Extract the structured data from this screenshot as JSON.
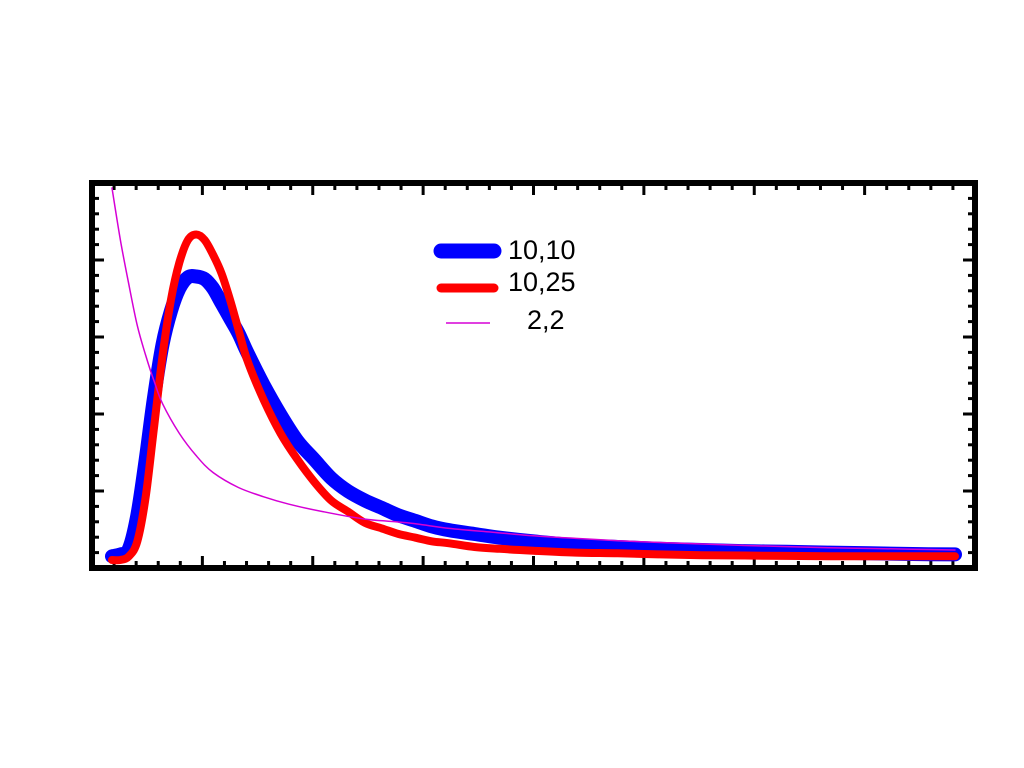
{
  "chart_data": {
    "type": "line",
    "title": "",
    "xlabel": "",
    "ylabel": "",
    "xlim": [
      0,
      1
    ],
    "ylim": [
      0,
      1
    ],
    "grid": false,
    "legend": {
      "placement": "top-center"
    },
    "frame_color": "#000000",
    "series": [
      {
        "name": "10,10",
        "color": "#0000ff",
        "x": [
          0.0,
          0.01,
          0.02,
          0.03,
          0.04,
          0.05,
          0.06,
          0.07,
          0.08,
          0.09,
          0.1,
          0.11,
          0.12,
          0.13,
          0.14,
          0.15,
          0.16,
          0.18,
          0.2,
          0.22,
          0.24,
          0.26,
          0.28,
          0.3,
          0.32,
          0.34,
          0.36,
          0.38,
          0.4,
          0.43,
          0.46,
          0.5,
          0.55,
          0.6,
          0.65,
          0.7,
          0.75,
          0.8,
          0.85,
          0.9,
          0.95,
          1.0
        ],
        "y": [
          0.01,
          0.015,
          0.03,
          0.12,
          0.27,
          0.44,
          0.58,
          0.67,
          0.73,
          0.76,
          0.762,
          0.755,
          0.73,
          0.69,
          0.65,
          0.61,
          0.56,
          0.47,
          0.39,
          0.32,
          0.27,
          0.22,
          0.185,
          0.16,
          0.14,
          0.12,
          0.105,
          0.09,
          0.08,
          0.07,
          0.06,
          0.05,
          0.04,
          0.035,
          0.03,
          0.027,
          0.024,
          0.022,
          0.02,
          0.018,
          0.016,
          0.015
        ]
      },
      {
        "name": "10,25",
        "color": "#ff0000",
        "x": [
          0.0,
          0.01,
          0.02,
          0.03,
          0.04,
          0.05,
          0.06,
          0.07,
          0.08,
          0.09,
          0.1,
          0.11,
          0.12,
          0.13,
          0.14,
          0.15,
          0.16,
          0.18,
          0.2,
          0.22,
          0.24,
          0.26,
          0.28,
          0.3,
          0.32,
          0.34,
          0.36,
          0.38,
          0.4,
          0.43,
          0.46,
          0.5,
          0.55,
          0.6,
          0.65,
          0.7,
          0.75,
          0.8,
          0.85,
          0.9,
          0.95,
          1.0
        ],
        "y": [
          0.0,
          0.0,
          0.01,
          0.05,
          0.17,
          0.36,
          0.55,
          0.7,
          0.8,
          0.86,
          0.875,
          0.86,
          0.82,
          0.77,
          0.7,
          0.62,
          0.54,
          0.43,
          0.34,
          0.27,
          0.21,
          0.16,
          0.13,
          0.1,
          0.085,
          0.07,
          0.06,
          0.05,
          0.045,
          0.035,
          0.03,
          0.025,
          0.02,
          0.018,
          0.015,
          0.013,
          0.012,
          0.011,
          0.01,
          0.01,
          0.01,
          0.01
        ]
      },
      {
        "name": "2,2",
        "color": "#d500d5",
        "x": [
          0.0,
          0.01,
          0.02,
          0.03,
          0.04,
          0.05,
          0.06,
          0.08,
          0.1,
          0.12,
          0.15,
          0.18,
          0.21,
          0.25,
          0.3,
          0.35,
          0.4,
          0.45,
          0.5,
          0.55,
          0.6,
          0.65,
          0.7,
          0.75,
          0.8,
          0.85,
          0.9,
          0.95,
          1.0
        ],
        "y": [
          1.0,
          0.86,
          0.74,
          0.63,
          0.55,
          0.48,
          0.42,
          0.34,
          0.28,
          0.235,
          0.195,
          0.17,
          0.15,
          0.13,
          0.11,
          0.1,
          0.085,
          0.075,
          0.065,
          0.058,
          0.052,
          0.047,
          0.043,
          0.039,
          0.036,
          0.033,
          0.031,
          0.029,
          0.027
        ]
      }
    ]
  }
}
